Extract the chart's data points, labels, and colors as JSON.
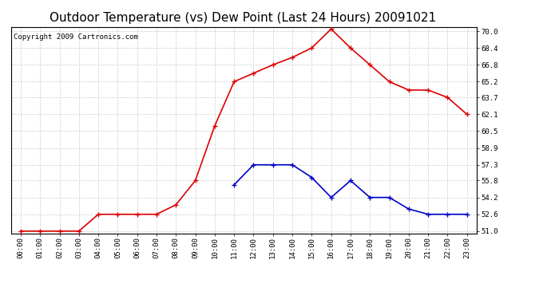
{
  "title": "Outdoor Temperature (vs) Dew Point (Last 24 Hours) 20091021",
  "copyright_text": "Copyright 2009 Cartronics.com",
  "x_labels": [
    "00:00",
    "01:00",
    "02:00",
    "03:00",
    "04:00",
    "05:00",
    "06:00",
    "07:00",
    "08:00",
    "09:00",
    "10:00",
    "11:00",
    "12:00",
    "13:00",
    "14:00",
    "15:00",
    "16:00",
    "17:00",
    "18:00",
    "19:00",
    "20:00",
    "21:00",
    "22:00",
    "23:00"
  ],
  "temp_data": [
    51.0,
    51.0,
    51.0,
    51.0,
    52.6,
    52.6,
    52.6,
    52.6,
    53.5,
    55.8,
    61.0,
    65.2,
    66.0,
    66.8,
    67.5,
    68.4,
    70.2,
    68.4,
    66.8,
    65.2,
    64.4,
    64.4,
    63.7,
    62.1
  ],
  "dew_data": [
    null,
    null,
    null,
    null,
    null,
    null,
    null,
    null,
    null,
    null,
    null,
    55.4,
    57.3,
    57.3,
    57.3,
    56.1,
    54.2,
    55.8,
    54.2,
    54.2,
    53.1,
    52.6,
    52.6,
    52.6
  ],
  "temp_color": "#dd0000",
  "dew_color": "#0000cc",
  "grid_color": "#cccccc",
  "bg_color": "#ffffff",
  "plot_bg_color": "#ffffff",
  "ylim_min": 51.0,
  "ylim_max": 70.4,
  "yticks": [
    51.0,
    52.6,
    54.2,
    55.8,
    57.3,
    58.9,
    60.5,
    62.1,
    63.7,
    65.2,
    66.8,
    68.4,
    70.0
  ],
  "marker": "+",
  "marker_size": 5,
  "linewidth": 1.2,
  "title_fontsize": 11,
  "tick_fontsize": 6.5,
  "copyright_fontsize": 6.5
}
